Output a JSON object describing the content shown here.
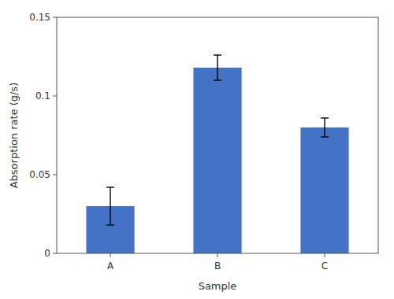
{
  "chart_data": {
    "type": "bar",
    "categories": [
      "A",
      "B",
      "C"
    ],
    "values": [
      0.03,
      0.118,
      0.08
    ],
    "errors": [
      0.012,
      0.008,
      0.006
    ],
    "color": "#4472C4",
    "xlabel": "Sample",
    "ylabel": "Absorption rate (g/s)",
    "ylim": [
      0,
      0.15
    ],
    "yticks": [
      0,
      0.05,
      0.1,
      0.15
    ],
    "grid": false
  }
}
